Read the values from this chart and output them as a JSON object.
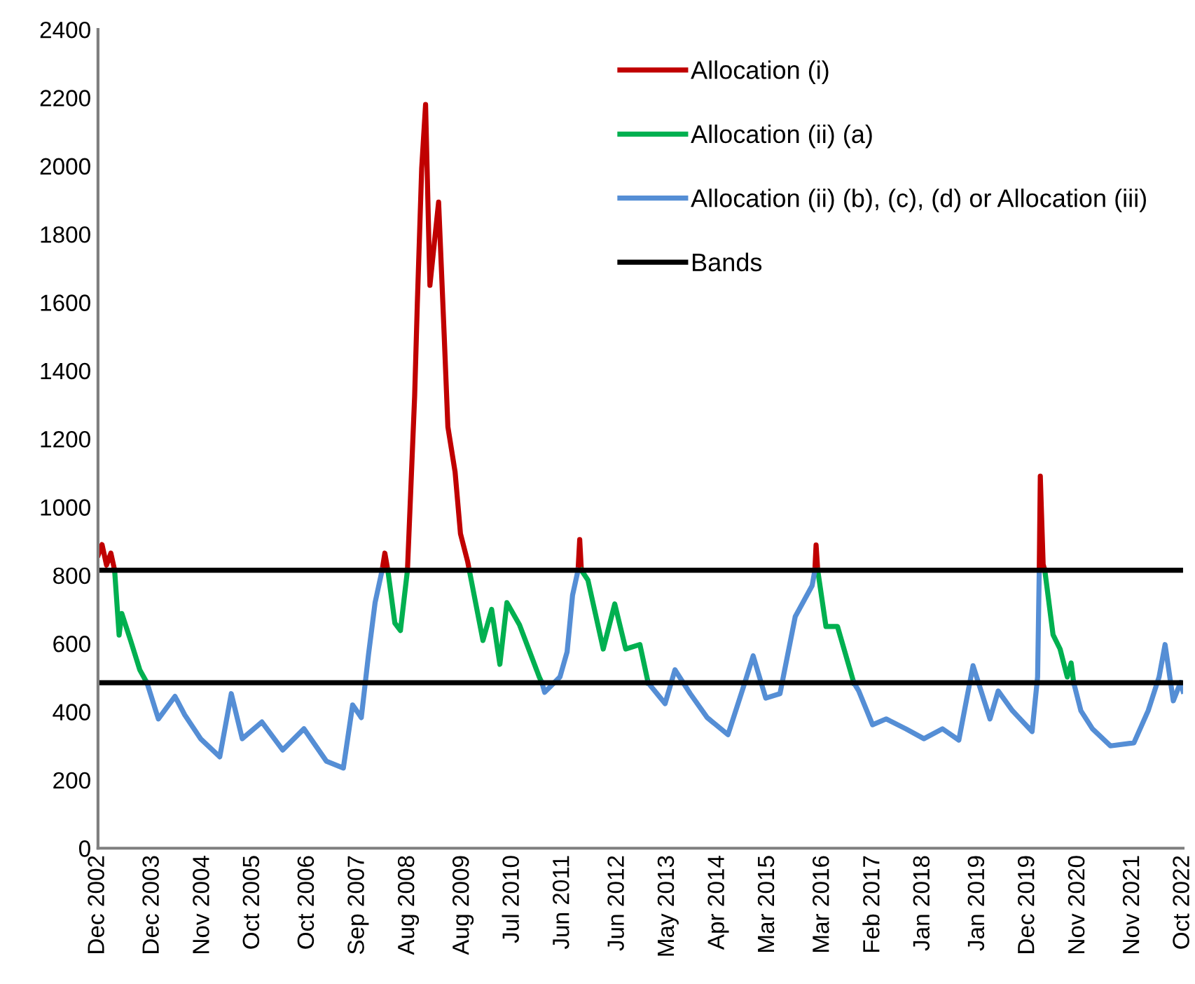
{
  "chart_data": {
    "type": "line",
    "series": [
      {
        "name": "Allocation (i)",
        "color": "#c00000",
        "x": [
          "2002-12-03",
          "2002-12-28",
          "2003-01-27",
          "2003-02-25",
          "2003-03-22",
          "2005-07-02",
          "2008-02-10",
          "2008-02-28",
          "2008-03-19",
          "2008-05-27",
          "2008-07-28",
          "2008-09-14",
          "2008-10-02",
          "2008-10-31",
          "2008-11-26",
          "2008-12-25",
          "2009-02-21",
          "2009-03-30",
          "2009-04-24",
          "2009-06-11",
          "2009-07-17",
          "2009-09-03",
          "2009-09-14",
          "2010-07-02",
          "2011-09-10",
          "2011-09-21",
          "2011-10-02",
          "2014-01-01",
          "2016-01-08",
          "2016-01-16",
          "2016-01-27",
          "2018-01-01",
          "2020-02-14",
          "2020-02-21",
          "2020-03-11",
          "2020-03-22"
        ],
        "values": [
          860,
          890,
          830,
          865,
          815,
          null,
          815,
          865,
          815,
          null,
          815,
          1325,
          1597,
          1993,
          2180,
          1650,
          1894,
          1507,
          1235,
          1103,
          922,
          840,
          815,
          null,
          815,
          905,
          815,
          null,
          815,
          889,
          815,
          null,
          815,
          1091,
          832,
          815
        ]
      },
      {
        "name": "Allocation (ii) (a)",
        "color": "#00b050",
        "x": [
          "2003-03-22",
          "2003-04-21",
          "2003-05-09",
          "2003-07-06",
          "2003-09-06",
          "2003-10-24",
          "2006-01-01",
          "2008-03-19",
          "2008-05-05",
          "2008-06-11",
          "2008-07-28",
          "2009-01-01",
          "2009-09-14",
          "2009-12-14",
          "2010-02-10",
          "2010-04-06",
          "2010-05-23",
          "2010-08-15",
          "2010-12-25",
          "2011-01-12",
          "2011-05-27",
          "2011-10-02",
          "2011-11-15",
          "2012-02-25",
          "2012-05-12",
          "2012-07-24",
          "2012-10-27",
          "2012-12-21",
          "2014-07-02",
          "2016-01-27",
          "2016-03-22",
          "2016-06-07",
          "2016-08-30",
          "2016-09-24",
          "2018-07-02",
          "2020-03-22",
          "2020-05-16",
          "2020-07-02",
          "2020-08-19",
          "2020-09-14",
          "2020-10-01"
        ],
        "values": [
          815,
          625,
          688,
          610,
          523,
          485,
          null,
          815,
          660,
          638,
          815,
          null,
          815,
          609,
          700,
          539,
          720,
          655,
          502,
          485,
          null,
          815,
          786,
          584,
          716,
          584,
          597,
          485,
          null,
          815,
          650,
          650,
          523,
          485,
          null,
          815,
          626,
          584,
          502,
          543,
          485
        ]
      },
      {
        "name": "Allocation (ii) (b), (c), (d) or Allocation (iii)",
        "color": "#558ed5",
        "x": [
          "2003-10-24",
          "2004-01-08",
          "2004-04-28",
          "2004-07-02",
          "2004-10-16",
          "2005-02-21",
          "2005-05-09",
          "2005-07-21",
          "2005-11-29",
          "2006-04-17",
          "2006-09-06",
          "2007-02-03",
          "2007-05-27",
          "2007-07-28",
          "2007-09-24",
          "2007-11-11",
          "2007-12-25",
          "2008-02-10",
          "2009-07-02",
          "2011-01-12",
          "2011-01-30",
          "2011-05-12",
          "2011-06-29",
          "2011-08-04",
          "2011-09-10",
          "2012-04-20",
          "2012-12-21",
          "2013-04-13",
          "2013-06-18",
          "2013-09-28",
          "2014-01-19",
          "2014-06-07",
          "2014-09-28",
          "2014-11-22",
          "2015-02-14",
          "2015-05-20",
          "2015-08-30",
          "2015-12-21",
          "2016-01-08",
          "2016-04-20",
          "2016-09-24",
          "2016-10-27",
          "2017-01-27",
          "2017-04-28",
          "2017-09-06",
          "2018-01-05",
          "2018-05-09",
          "2018-08-26",
          "2018-11-29",
          "2019-03-22",
          "2019-05-16",
          "2019-08-19",
          "2019-12-28",
          "2020-02-03",
          "2020-02-14",
          "2020-05-27",
          "2020-10-01",
          "2020-11-18",
          "2021-02-03",
          "2021-06-03",
          "2021-11-07",
          "2022-02-10",
          "2022-04-24",
          "2022-06-03",
          "2022-07-28",
          "2022-09-14",
          "2022-10-01"
        ],
        "values": [
          485,
          379,
          445,
          391,
          321,
          268,
          453,
          321,
          370,
          288,
          350,
          255,
          235,
          420,
          383,
          568,
          720,
          815,
          null,
          485,
          457,
          502,
          576,
          741,
          815,
          null,
          485,
          424,
          523,
          453,
          383,
          333,
          486,
          564,
          440,
          453,
          679,
          770,
          815,
          null,
          485,
          461,
          362,
          379,
          350,
          321,
          350,
          317,
          535,
          379,
          461,
          403,
          342,
          502,
          815,
          null,
          485,
          403,
          350,
          300,
          309,
          403,
          502,
          597,
          432,
          486,
          460
        ]
      }
    ],
    "ref_lines": [
      {
        "axis": "y",
        "value": 815,
        "label": "Bands",
        "color": "#000000"
      },
      {
        "axis": "y",
        "value": 485,
        "color": "#000000"
      }
    ],
    "xlim": [
      "2002-12-01",
      "2022-10-01"
    ],
    "xticks": [
      {
        "value": "2002-12-01",
        "label": "Dec 2002"
      },
      {
        "value": "2003-12-01",
        "label": "Dec 2003"
      },
      {
        "value": "2004-11-01",
        "label": "Nov 2004"
      },
      {
        "value": "2005-10-01",
        "label": "Oct 2005"
      },
      {
        "value": "2006-10-01",
        "label": "Oct 2006"
      },
      {
        "value": "2007-09-01",
        "label": "Sep 2007"
      },
      {
        "value": "2008-08-01",
        "label": "Aug 2008"
      },
      {
        "value": "2009-08-01",
        "label": "Aug 2009"
      },
      {
        "value": "2010-07-01",
        "label": "Jul 2010"
      },
      {
        "value": "2011-06-01",
        "label": "Jun 2011"
      },
      {
        "value": "2012-06-01",
        "label": "Jun 2012"
      },
      {
        "value": "2013-05-01",
        "label": "May 2013"
      },
      {
        "value": "2014-04-01",
        "label": "Apr 2014"
      },
      {
        "value": "2015-03-01",
        "label": "Mar 2015"
      },
      {
        "value": "2016-03-01",
        "label": "Mar 2016"
      },
      {
        "value": "2017-02-01",
        "label": "Feb 2017"
      },
      {
        "value": "2018-01-01",
        "label": "Jan 2018"
      },
      {
        "value": "2019-01-01",
        "label": "Jan 2019"
      },
      {
        "value": "2019-12-01",
        "label": "Dec 2019"
      },
      {
        "value": "2020-11-01",
        "label": "Nov 2020"
      },
      {
        "value": "2021-11-01",
        "label": "Nov 2021"
      },
      {
        "value": "2022-10-01",
        "label": "Oct 2022"
      }
    ],
    "ylim": [
      0,
      2400
    ],
    "yticks": [
      0,
      200,
      400,
      600,
      800,
      1000,
      1200,
      1400,
      1600,
      1800,
      2000,
      2200,
      2400
    ],
    "grid": false,
    "legend": "top right",
    "marker": "none",
    "line_style": "solid"
  }
}
